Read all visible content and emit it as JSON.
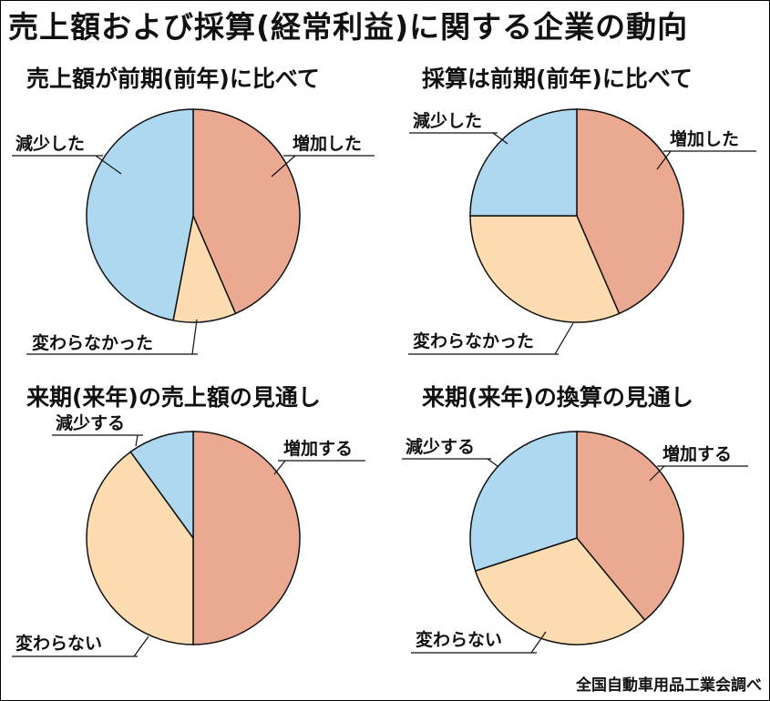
{
  "title": "売上額および採算(経常利益)に関する企業の動向",
  "source": "全国自動車用品工業会調べ",
  "colors": {
    "increase": "#EBA992",
    "unchanged": "#FCDCB0",
    "decrease": "#AED7F0",
    "stroke": "#111111"
  },
  "chart_data": [
    {
      "type": "pie",
      "title": "売上額が前期(前年)に比べて",
      "slices": [
        {
          "label": "増加した",
          "value": 43.5,
          "color": "#EBA992"
        },
        {
          "label": "変わらなかった",
          "value": 9.5,
          "color": "#FCDCB0"
        },
        {
          "label": "減少した",
          "value": 47.0,
          "color": "#AED7F0"
        }
      ]
    },
    {
      "type": "pie",
      "title": "採算は前期(前年)に比べて",
      "slices": [
        {
          "label": "増加した",
          "value": 43.5,
          "color": "#EBA992"
        },
        {
          "label": "変わらなかった",
          "value": 31.5,
          "color": "#FCDCB0"
        },
        {
          "label": "減少した",
          "value": 25.0,
          "color": "#AED7F0"
        }
      ]
    },
    {
      "type": "pie",
      "title": "来期(来年)の売上額の見通し",
      "slices": [
        {
          "label": "増加する",
          "value": 50.0,
          "color": "#EBA992"
        },
        {
          "label": "変わらない",
          "value": 40.0,
          "color": "#FCDCB0"
        },
        {
          "label": "減少する",
          "value": 10.0,
          "color": "#AED7F0"
        }
      ]
    },
    {
      "type": "pie",
      "title": "来期(来年)の換算の見通し",
      "slices": [
        {
          "label": "増加する",
          "value": 39.0,
          "color": "#EBA992"
        },
        {
          "label": "変わらない",
          "value": 31.0,
          "color": "#FCDCB0"
        },
        {
          "label": "減少する",
          "value": 30.0,
          "color": "#AED7F0"
        }
      ]
    }
  ]
}
